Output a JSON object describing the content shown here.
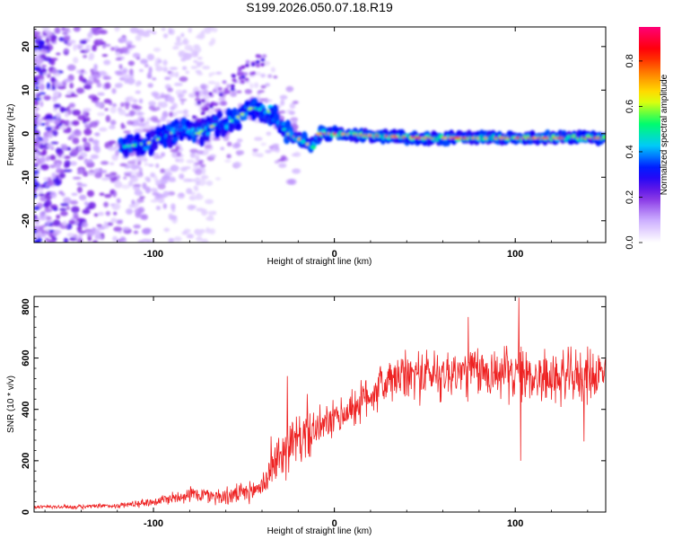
{
  "title": "S199.2026.050.07.18.R19",
  "chart_data": [
    {
      "type": "heatmap",
      "title": "S199.2026.050.07.18.R19",
      "xlabel": "Height of straight line (km)",
      "ylabel": "Frequency (Hz)",
      "xlim": [
        -166,
        150
      ],
      "ylim": [
        -25,
        24.5
      ],
      "xticks": [
        -100,
        0,
        100
      ],
      "yticks": [
        -20,
        -10,
        0,
        10,
        20
      ],
      "colorbar": {
        "label": "Normalized spectral amplitude",
        "range": [
          0,
          0.95
        ],
        "ticks": [
          0.0,
          0.2,
          0.4,
          0.6,
          0.8
        ],
        "tick_labels": [
          "0.0",
          "0.2",
          "0.4",
          "0.6",
          "0.8"
        ],
        "colors": [
          "#ffffff",
          "#c9a8ff",
          "#7a1fe0",
          "#0000ff",
          "#00c8ff",
          "#00ff66",
          "#ffff00",
          "#ff8800",
          "#ff0000",
          "#ff0077"
        ]
      },
      "ridge": [
        {
          "x": -115,
          "y": -3
        },
        {
          "x": -100,
          "y": -2
        },
        {
          "x": -85,
          "y": 1
        },
        {
          "x": -75,
          "y": 0
        },
        {
          "x": -65,
          "y": 2
        },
        {
          "x": -55,
          "y": 3
        },
        {
          "x": -45,
          "y": 6
        },
        {
          "x": -35,
          "y": 5
        },
        {
          "x": -25,
          "y": 0
        },
        {
          "x": -15,
          "y": -2
        },
        {
          "x": -12,
          "y": -3
        },
        {
          "x": -8,
          "y": 0
        },
        {
          "x": 0,
          "y": 0
        },
        {
          "x": 50,
          "y": -1
        },
        {
          "x": 100,
          "y": -1
        },
        {
          "x": 150,
          "y": -1
        }
      ]
    },
    {
      "type": "line",
      "xlabel": "Height of straight line (km)",
      "ylabel": "SNR (10 * v/v)",
      "xlim": [
        -166,
        150
      ],
      "ylim": [
        0,
        840
      ],
      "xticks": [
        -100,
        0,
        100
      ],
      "yticks": [
        0,
        200,
        400,
        600,
        800
      ],
      "series": [
        {
          "name": "SNR",
          "color": "#ee2222",
          "envelope_x": [
            -166,
            -140,
            -120,
            -100,
            -80,
            -60,
            -45,
            -38,
            -32,
            -25,
            -15,
            -5,
            5,
            15,
            25,
            35,
            45,
            60,
            80,
            100,
            120,
            150
          ],
          "envelope_y": [
            20,
            20,
            25,
            40,
            70,
            60,
            80,
            120,
            200,
            260,
            300,
            340,
            380,
            430,
            490,
            520,
            535,
            540,
            545,
            540,
            520,
            540
          ],
          "noise_amplitude": [
            8,
            8,
            10,
            18,
            30,
            35,
            40,
            60,
            90,
            100,
            90,
            70,
            70,
            80,
            90,
            90,
            100,
            100,
            100,
            100,
            100,
            100
          ],
          "peaks": [
            {
              "x": -26,
              "y": 530
            },
            {
              "x": -35,
              "y": 295
            },
            {
              "x": -15,
              "y": 460
            },
            {
              "x": 102,
              "y": 835
            },
            {
              "x": 74,
              "y": 760
            },
            {
              "x": 103,
              "y": 200
            },
            {
              "x": 138,
              "y": 275
            }
          ]
        }
      ]
    }
  ]
}
